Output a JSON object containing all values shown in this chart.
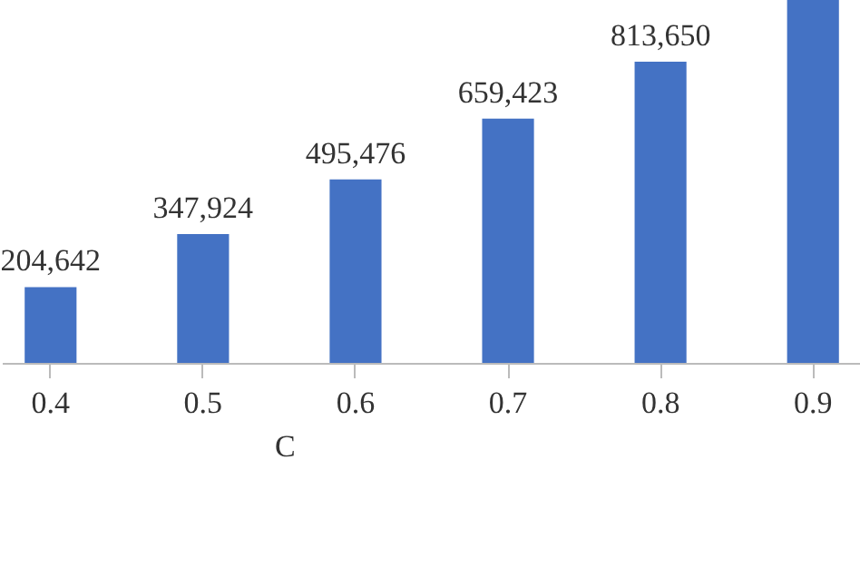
{
  "chart_data": {
    "type": "bar",
    "xlabel": "C",
    "categories": [
      "0.4",
      "0.5",
      "0.6",
      "0.7",
      "0.8",
      "0.9"
    ],
    "values": [
      204642,
      347924,
      495476,
      659423,
      813650,
      980000
    ],
    "value_labels": [
      "204,642",
      "347,924",
      "495,476",
      "659,423",
      "813,650",
      null
    ],
    "color": "#4472c4"
  }
}
